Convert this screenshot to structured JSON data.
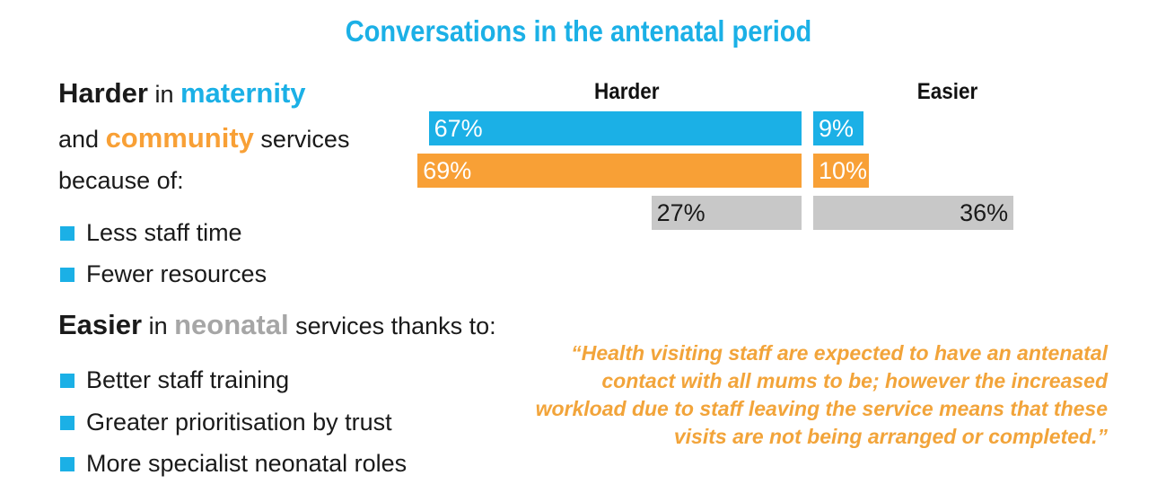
{
  "title": "Conversations in the antenatal period",
  "harder": {
    "word": "Harder",
    "in": " in ",
    "maternity": "maternity",
    "and": "and ",
    "community": "community",
    "services": " services",
    "because": "because of:",
    "reasons": [
      "Less staff time",
      "Fewer resources"
    ]
  },
  "easier": {
    "word": "Easier",
    "in": " in ",
    "neonatal": "neonatal",
    "services": " services thanks to:",
    "reasons": [
      "Better staff training",
      "Greater prioritisation by trust",
      "More specialist neonatal roles"
    ]
  },
  "quote": "“Health visiting staff are expected to have an antenatal contact with all mums to be; however the increased workload due to staff leaving the service means that these visits are not being arranged or completed.”",
  "colors": {
    "maternity": "#1bb0e6",
    "community": "#f8a036",
    "neonatal": "#c8c8c8",
    "quote": "#f2a43a"
  },
  "chart_data": {
    "type": "bar",
    "columns": [
      "Harder",
      "Easier"
    ],
    "series": [
      {
        "harder": 67,
        "easier": 9,
        "harder_label": "67%",
        "easier_label": "9%",
        "color": "#1bb0e6",
        "text_color": "#ffffff"
      },
      {
        "harder": 69,
        "easier": 10,
        "harder_label": "69%",
        "easier_label": "10%",
        "color": "#f8a036",
        "text_color": "#ffffff"
      },
      {
        "harder": 27,
        "easier": 36,
        "harder_label": "27%",
        "easier_label": "36%",
        "color": "#c8c8c8",
        "text_color": "#1a1a1a"
      }
    ]
  }
}
